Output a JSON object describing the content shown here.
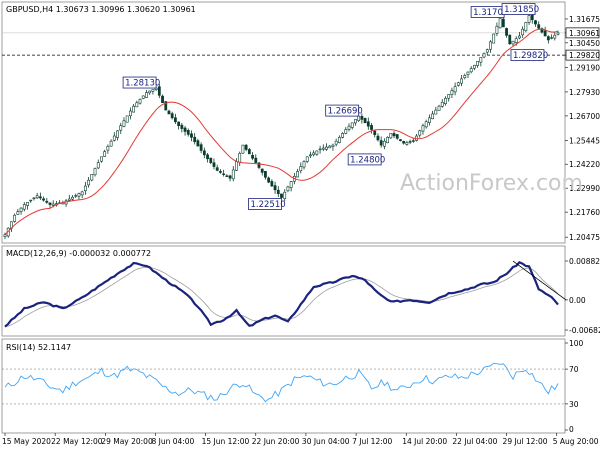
{
  "chart_data": [
    {
      "type": "candlestick",
      "title": "GBPUSD,H4  1.30673 1.30996 1.30620 1.30961",
      "yticks": [
        "1.31675",
        "1.30961",
        "1.30450",
        "1.29820",
        "1.29190",
        "1.27930",
        "1.26700",
        "1.25445",
        "1.24220",
        "1.22990",
        "1.21760",
        "1.20475"
      ],
      "ylim": [
        1.2033,
        1.3193
      ],
      "current_price": "1.30961",
      "support_price": "1.29820",
      "support_level": 1.2982,
      "current_level": 1.30961,
      "moving_average": "red",
      "path": [
        [
          0,
          1.206
        ],
        [
          3,
          1.216
        ],
        [
          6,
          1.2215
        ],
        [
          10,
          1.226
        ],
        [
          14,
          1.2215
        ],
        [
          18,
          1.2225
        ],
        [
          24,
          1.228
        ],
        [
          30,
          1.246
        ],
        [
          36,
          1.262
        ],
        [
          40,
          1.272
        ],
        [
          44,
          1.279
        ],
        [
          47,
          1.2813
        ],
        [
          50,
          1.27
        ],
        [
          54,
          1.262
        ],
        [
          58,
          1.256
        ],
        [
          62,
          1.247
        ],
        [
          66,
          1.239
        ],
        [
          70,
          1.235
        ],
        [
          74,
          1.252
        ],
        [
          78,
          1.243
        ],
        [
          82,
          1.233
        ],
        [
          86,
          1.2251
        ],
        [
          90,
          1.236
        ],
        [
          94,
          1.246
        ],
        [
          98,
          1.25
        ],
        [
          102,
          1.252
        ],
        [
          106,
          1.26
        ],
        [
          110,
          1.2669
        ],
        [
          114,
          1.26
        ],
        [
          117,
          1.252
        ],
        [
          120,
          1.258
        ],
        [
          124,
          1.253
        ],
        [
          127,
          1.254
        ],
        [
          130,
          1.262
        ],
        [
          134,
          1.27
        ],
        [
          138,
          1.278
        ],
        [
          142,
          1.286
        ],
        [
          146,
          1.293
        ],
        [
          150,
          1.301
        ],
        [
          154,
          1.317
        ],
        [
          157,
          1.304
        ],
        [
          160,
          1.308
        ],
        [
          163,
          1.3185
        ],
        [
          166,
          1.312
        ],
        [
          169,
          1.306
        ],
        [
          172,
          1.3096
        ]
      ],
      "labels": [
        {
          "text": "1.28130",
          "x": 47,
          "y": 1.2813
        },
        {
          "text": "1.22510",
          "x": 86,
          "y": 1.2251
        },
        {
          "text": "1.26690",
          "x": 110,
          "y": 1.2669
        },
        {
          "text": "1.24800",
          "x": 117,
          "y": 1.248
        },
        {
          "text": "1.31700",
          "x": 154,
          "y": 1.317
        },
        {
          "text": "1.31850",
          "x": 163,
          "y": 1.3185
        },
        {
          "text": "1.29820",
          "x": 158,
          "y": 1.2982
        }
      ],
      "watermark": "ActionForex.com"
    },
    {
      "type": "line",
      "title": "MACD(12,26,9) -0.000032 0.000772",
      "yticks": [
        "0.008824",
        "0.00",
        "-0.006825"
      ],
      "ylim": [
        -0.0075,
        0.0095
      ],
      "path": [
        [
          0,
          -0.006
        ],
        [
          6,
          -0.002
        ],
        [
          12,
          -0.0005
        ],
        [
          18,
          -0.002
        ],
        [
          24,
          0.0005
        ],
        [
          30,
          0.0035
        ],
        [
          36,
          0.0065
        ],
        [
          40,
          0.0082
        ],
        [
          44,
          0.0078
        ],
        [
          50,
          0.0045
        ],
        [
          56,
          0.0015
        ],
        [
          60,
          -0.0015
        ],
        [
          64,
          -0.0055
        ],
        [
          68,
          -0.0045
        ],
        [
          72,
          -0.0025
        ],
        [
          76,
          -0.006
        ],
        [
          80,
          -0.0045
        ],
        [
          84,
          -0.0035
        ],
        [
          88,
          -0.005
        ],
        [
          92,
          -0.001
        ],
        [
          96,
          0.003
        ],
        [
          102,
          0.004
        ],
        [
          108,
          0.0055
        ],
        [
          112,
          0.0045
        ],
        [
          116,
          0.0015
        ],
        [
          120,
          -0.0005
        ],
        [
          126,
          0.0
        ],
        [
          132,
          -0.0005
        ],
        [
          138,
          0.0015
        ],
        [
          144,
          0.0025
        ],
        [
          148,
          0.0035
        ],
        [
          152,
          0.004
        ],
        [
          156,
          0.006
        ],
        [
          160,
          0.0085
        ],
        [
          163,
          0.0075
        ],
        [
          166,
          0.0025
        ],
        [
          170,
          0.0005
        ],
        [
          172,
          -0.001
        ]
      ],
      "trendline": [
        [
          158,
          0.0088
        ],
        [
          172,
          0.0
        ]
      ]
    },
    {
      "type": "line",
      "title": "RSI(14) 52.1147",
      "yticks": [
        "100",
        "70",
        "30",
        "0"
      ],
      "ylim": [
        0,
        100
      ],
      "levels": [
        70,
        30
      ],
      "path": [
        [
          0,
          48
        ],
        [
          3,
          55
        ],
        [
          6,
          62
        ],
        [
          10,
          58
        ],
        [
          14,
          50
        ],
        [
          18,
          45
        ],
        [
          22,
          55
        ],
        [
          26,
          60
        ],
        [
          30,
          68
        ],
        [
          34,
          62
        ],
        [
          38,
          70
        ],
        [
          42,
          66
        ],
        [
          46,
          58
        ],
        [
          50,
          48
        ],
        [
          54,
          42
        ],
        [
          58,
          46
        ],
        [
          62,
          40
        ],
        [
          66,
          36
        ],
        [
          70,
          48
        ],
        [
          74,
          55
        ],
        [
          78,
          40
        ],
        [
          82,
          35
        ],
        [
          86,
          45
        ],
        [
          90,
          58
        ],
        [
          94,
          62
        ],
        [
          98,
          55
        ],
        [
          102,
          52
        ],
        [
          106,
          60
        ],
        [
          110,
          65
        ],
        [
          114,
          48
        ],
        [
          118,
          55
        ],
        [
          122,
          45
        ],
        [
          126,
          52
        ],
        [
          130,
          60
        ],
        [
          134,
          56
        ],
        [
          138,
          62
        ],
        [
          142,
          60
        ],
        [
          146,
          65
        ],
        [
          150,
          70
        ],
        [
          154,
          78
        ],
        [
          158,
          62
        ],
        [
          162,
          72
        ],
        [
          166,
          55
        ],
        [
          169,
          44
        ],
        [
          172,
          52
        ]
      ]
    }
  ],
  "xticks": [
    "15 May 2020",
    "22 May 12:00",
    "29 May 20:00",
    "8 Jun 04:00",
    "15 Jun 12:00",
    "22 Jun 20:00",
    "30 Jun 04:00",
    "7 Jul 12:00",
    "14 Jul 20:00",
    "22 Jul 04:00",
    "29 Jul 12:00",
    "5 Aug 20:00"
  ],
  "xtick_bars": [
    0,
    15.6,
    31.2,
    46.8,
    62.4,
    78,
    93.6,
    109.2,
    124.8,
    140.4,
    156,
    171.6
  ],
  "n_bars": 173
}
